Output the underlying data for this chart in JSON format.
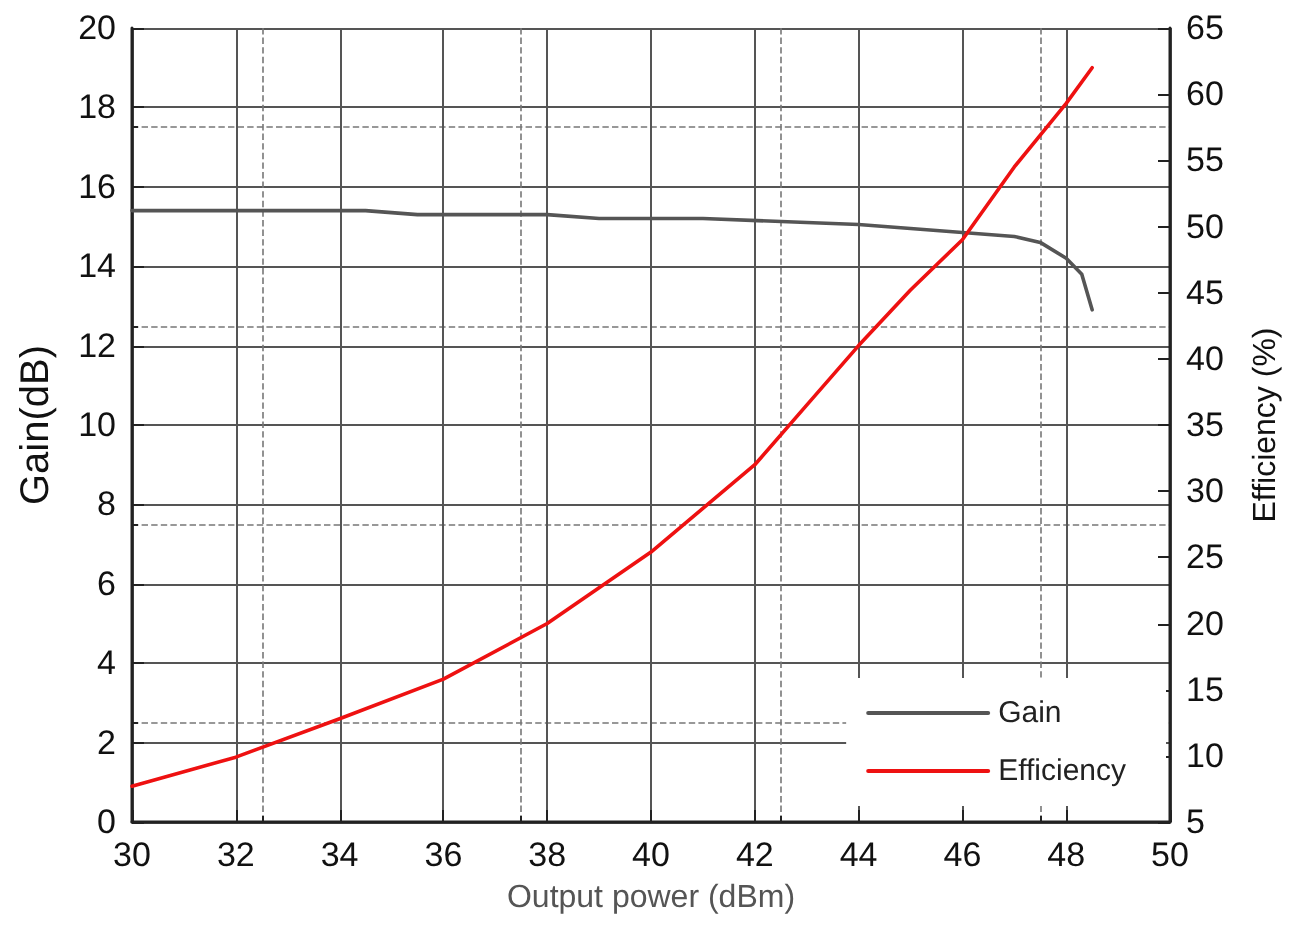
{
  "chart_data": {
    "type": "line",
    "xlabel": "Output power (dBm)",
    "ylabel": "Gain(dB)",
    "y2label": "Efficiency (%)",
    "xlim": [
      30,
      50
    ],
    "xticks": [
      30,
      32,
      34,
      36,
      38,
      40,
      42,
      44,
      46,
      48,
      50
    ],
    "ylim": [
      0,
      20
    ],
    "yticks": [
      0,
      2,
      4,
      6,
      8,
      10,
      12,
      14,
      16,
      18,
      20
    ],
    "y2lim": [
      5,
      65
    ],
    "y2ticks": [
      5,
      10,
      15,
      20,
      25,
      30,
      35,
      40,
      45,
      50,
      55,
      60,
      65
    ],
    "grid": true,
    "legend": "bottom right",
    "marker": "none",
    "line_style": "solid",
    "series": [
      {
        "name": "Gain",
        "color": "#555555",
        "x": [
          30,
          34.5,
          35.5,
          38,
          39,
          41,
          43,
          44,
          45,
          46,
          47,
          47.5,
          48,
          48.3,
          48.5
        ],
        "values": [
          15.4,
          15.4,
          15.3,
          15.3,
          15.2,
          15.2,
          15.1,
          15.05,
          14.95,
          14.85,
          14.75,
          14.6,
          14.2,
          13.8,
          12.9
        ]
      },
      {
        "name": "Efficiency",
        "color": "#ee1111",
        "axis": "y2",
        "x": [
          30,
          32,
          34,
          36,
          38,
          40,
          42,
          43,
          44,
          45,
          46,
          47,
          48,
          48.5
        ],
        "values": [
          7.7,
          9.9,
          12.8,
          15.8,
          20,
          25.4,
          32,
          36.5,
          41,
          45.2,
          49,
          54.5,
          59.3,
          62
        ]
      }
    ]
  }
}
